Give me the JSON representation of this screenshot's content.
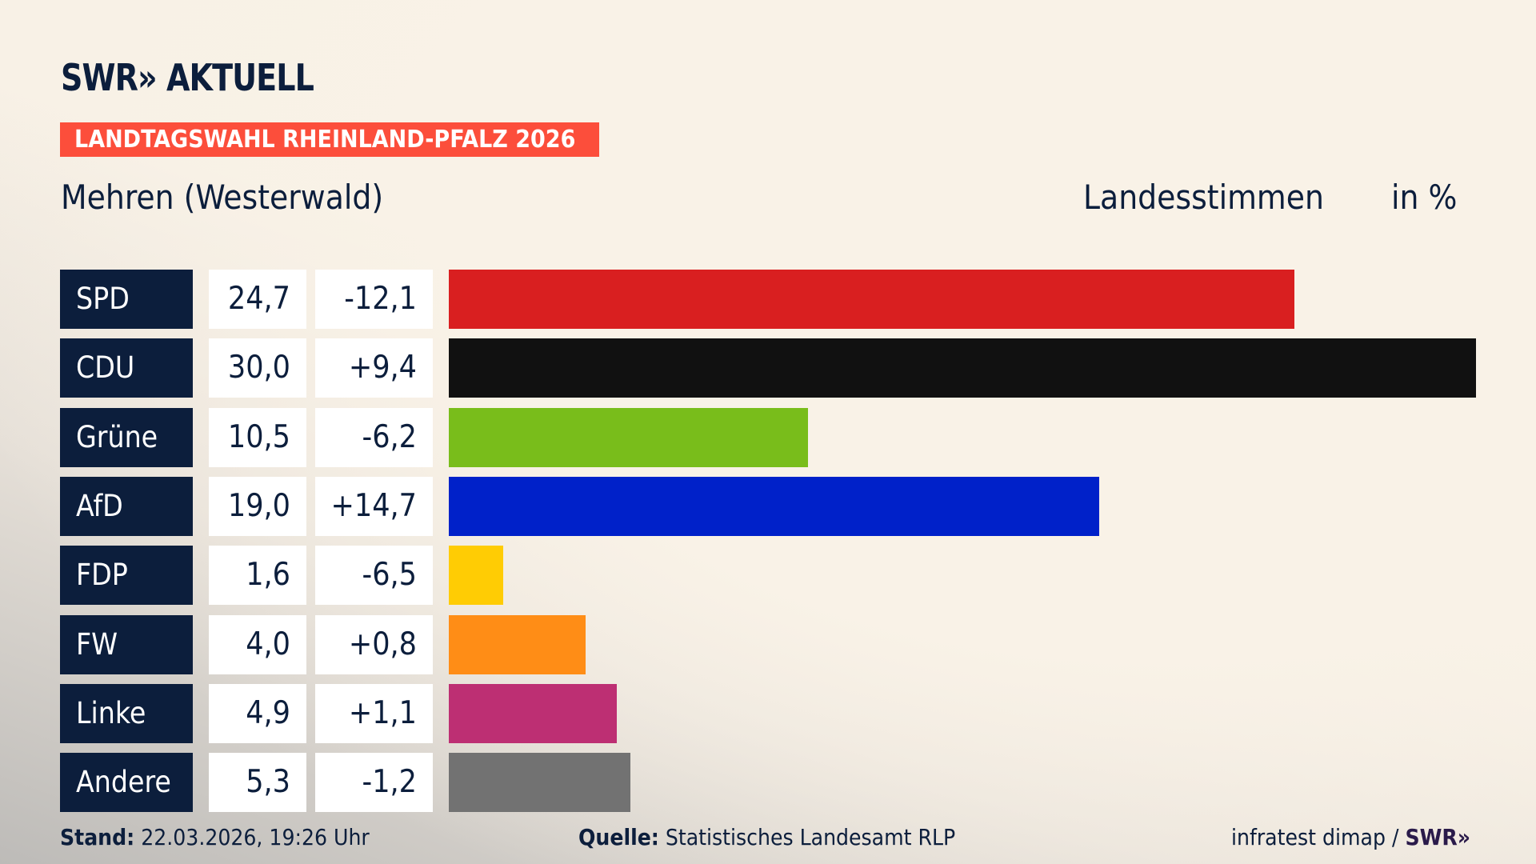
{
  "logo": "SWR» AKTUELL",
  "badge": "LANDTAGSWAHL RHEINLAND-PFALZ 2026",
  "location": "Mehren (Westerwald)",
  "measure": "Landesstimmen",
  "unit": "in %",
  "chart_data": {
    "type": "bar",
    "orientation": "horizontal",
    "categories": [
      "SPD",
      "CDU",
      "Grüne",
      "AfD",
      "FDP",
      "FW",
      "Linke",
      "Andere"
    ],
    "values": [
      24.7,
      30.0,
      10.5,
      19.0,
      1.6,
      4.0,
      4.9,
      5.3
    ],
    "value_labels": [
      "24,7",
      "30,0",
      "10,5",
      "19,0",
      "1,6",
      "4,0",
      "4,9",
      "5,3"
    ],
    "diff_labels": [
      "-12,1",
      "+9,4",
      "-6,2",
      "+14,7",
      "-6,5",
      "+0,8",
      "+1,1",
      "-1,2"
    ],
    "colors": [
      "#d91f20",
      "#111111",
      "#79bd1b",
      "#0021c9",
      "#ffcc04",
      "#ff8d16",
      "#bd2f73",
      "#727272"
    ],
    "xlim": [
      0,
      30
    ]
  },
  "footer": {
    "stand_label": "Stand:",
    "stand_value": "22.03.2026, 19:26 Uhr",
    "source_label": "Quelle:",
    "source_value": "Statistisches Landesamt RLP",
    "credit": "infratest dimap / ",
    "credit_logo": "SWR»"
  }
}
